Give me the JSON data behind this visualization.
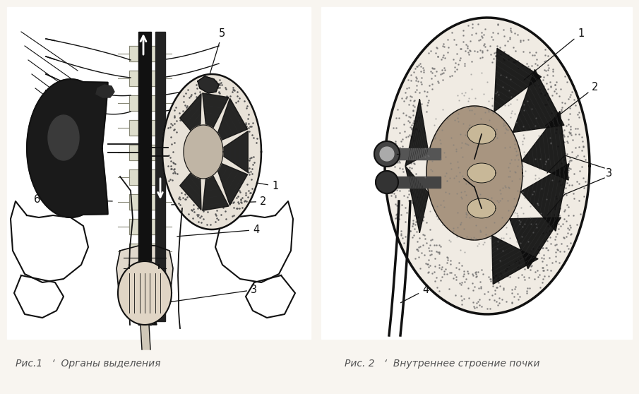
{
  "background_color": "#f8f5f0",
  "fig_width": 9.05,
  "fig_height": 5.58,
  "caption_left": "Рис.1   ‘  Органы выделения",
  "caption_right": "Рис. 2   ‘  Внутреннее строение почки",
  "caption_fontsize": 10,
  "caption_color": "#555555",
  "label_fontsize": 10.5,
  "label_color": "#111111",
  "line_color": "#111111"
}
